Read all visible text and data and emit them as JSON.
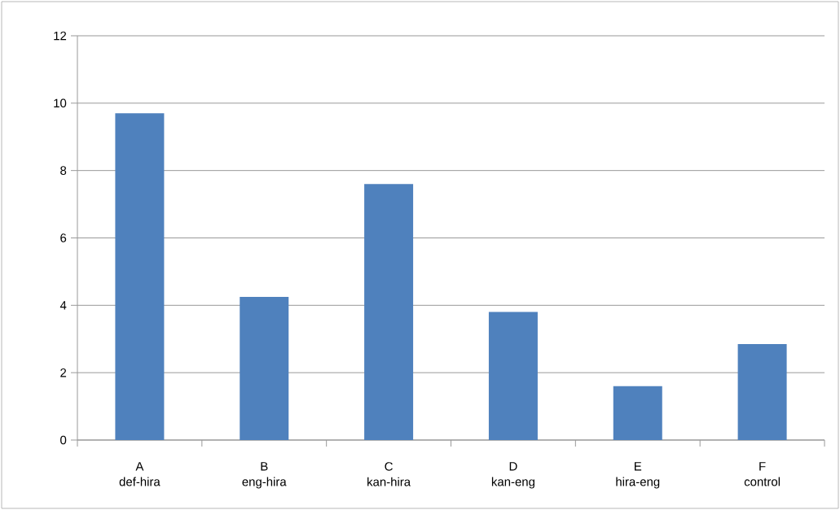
{
  "chart_data": {
    "type": "bar",
    "categories": [
      "A def-hira",
      "B eng-hira",
      "C kan-hira",
      "D kan-eng",
      "E hira-eng",
      "F control"
    ],
    "values": [
      9.7,
      4.25,
      7.6,
      3.8,
      1.6,
      2.85
    ],
    "color": "#4f81bd",
    "ylim": [
      0,
      12
    ],
    "yticks": [
      0,
      2,
      4,
      6,
      8,
      10,
      12
    ],
    "grid": "y"
  }
}
